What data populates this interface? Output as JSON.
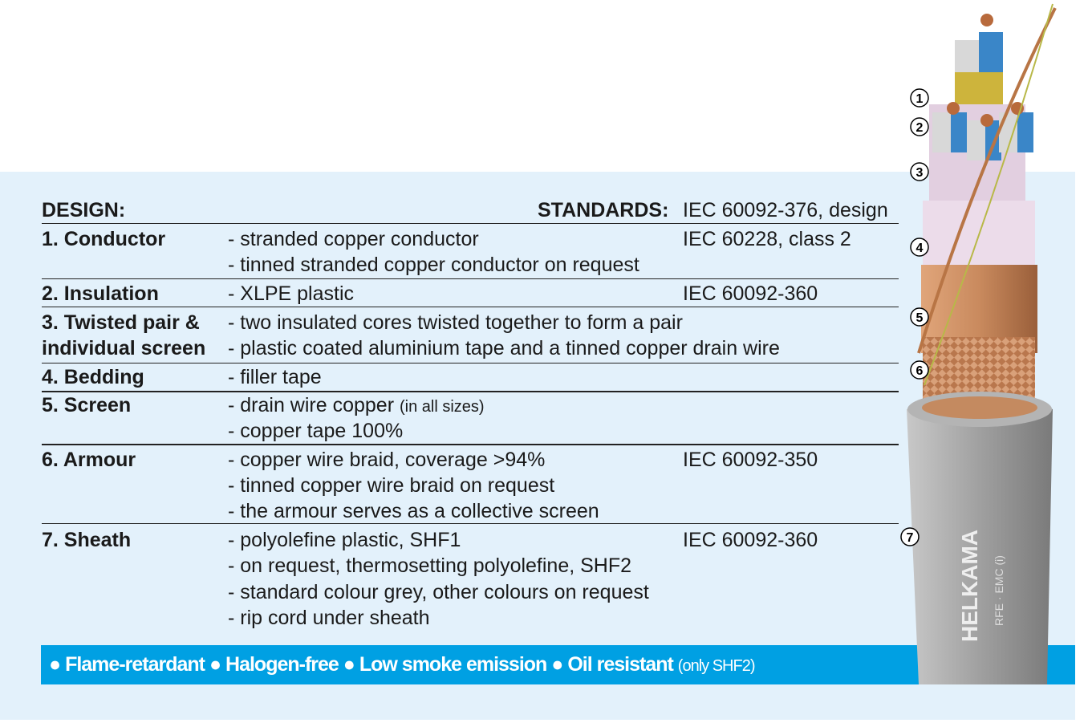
{
  "header": {
    "design_label": "DESIGN:",
    "standards_label": "STANDARDS:",
    "standards_value": "IEC 60092-376, design"
  },
  "rows": [
    {
      "name": "1. Conductor",
      "lines": [
        "- stranded copper conductor",
        "- tinned stranded copper conductor on request"
      ],
      "standard": "IEC 60228, class 2"
    },
    {
      "name": "2. Insulation",
      "lines": [
        "- XLPE plastic"
      ],
      "standard": "IEC 60092-360"
    },
    {
      "name": "3. Twisted pair &",
      "name2": "individual screen",
      "lines": [
        "- two insulated cores twisted together to form a pair",
        "- plastic coated aluminium tape and a tinned copper drain wire"
      ]
    },
    {
      "name": "4. Bedding",
      "lines": [
        "- filler tape"
      ]
    },
    {
      "name": "5. Screen",
      "lines": [
        "- drain wire copper",
        "- copper tape 100%"
      ],
      "note": "(in all sizes)"
    },
    {
      "name": "6. Armour",
      "lines": [
        "- copper wire braid, coverage >94%",
        "- tinned copper wire braid on request",
        "- the armour serves as a collective screen"
      ],
      "standard": "IEC 60092-350"
    },
    {
      "name": "7. Sheath",
      "lines": [
        "- polyolefine plastic, SHF1",
        "- on request, thermosetting polyolefine, SHF2",
        "- standard colour grey, other colours on request",
        "- rip cord under sheath"
      ],
      "standard": "IEC 60092-360"
    }
  ],
  "features": {
    "items": [
      "Flame-retardant",
      "Halogen-free",
      "Low smoke emission",
      "Oil resistant"
    ],
    "note": "(only SHF2)",
    "bullet": "●"
  },
  "cable": {
    "brand": "HELKAMA",
    "marking": "RFE · EMC (i)",
    "callouts": [
      "1",
      "2",
      "3",
      "4",
      "5",
      "6",
      "7"
    ]
  },
  "colors": {
    "bar": "#00a0e3",
    "background": "#e3f1fb",
    "sheath": "#9a9a9a",
    "copper": "#c98a5e"
  }
}
